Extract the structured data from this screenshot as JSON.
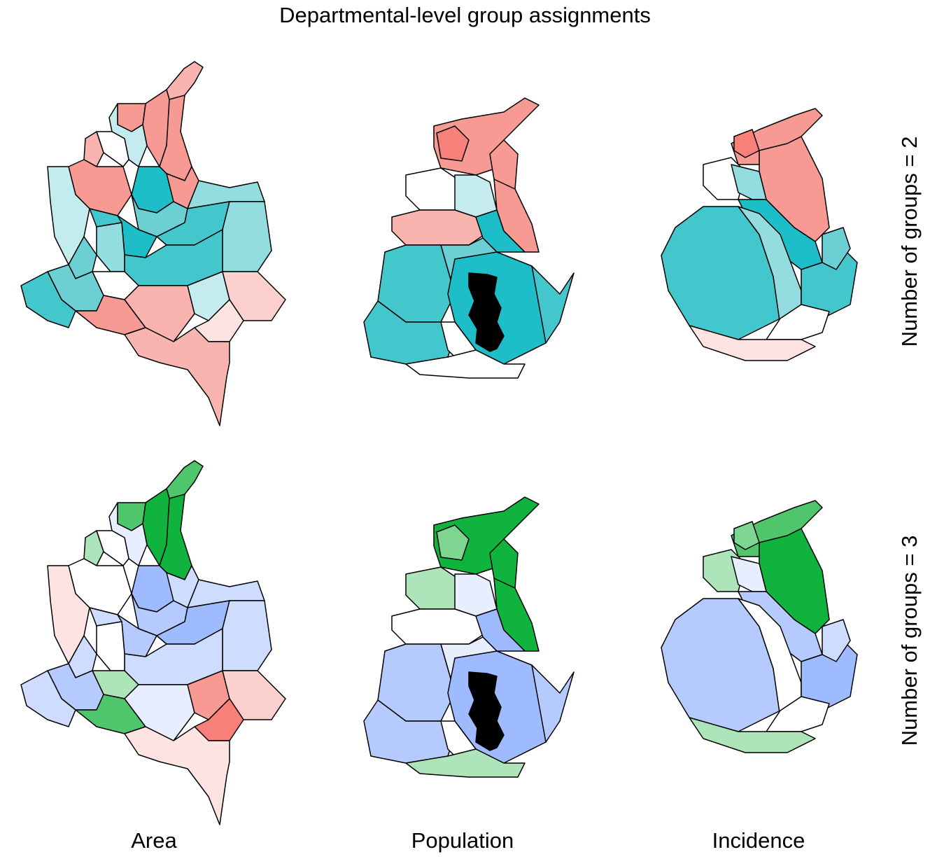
{
  "title": "Departmental-level group assignments",
  "columns": [
    "Area",
    "Population",
    "Incidence"
  ],
  "rows": [
    "Number of groups = 2",
    "Number of groups = 3"
  ],
  "colors": {
    "red_1": "#f7807a",
    "red_2": "#f79a94",
    "red_3": "#f9b4b0",
    "red_4": "#fbd0ce",
    "red_5": "#fde4e3",
    "teal_1": "#1ebec8",
    "teal_2": "#44c6cd",
    "teal_3": "#6ccfd4",
    "teal_4": "#93dde0",
    "teal_5": "#c4ecee",
    "green_1": "#0fb33e",
    "green_2": "#4fc66c",
    "green_3": "#7fd592",
    "green_4": "#ade4b9",
    "blue_1": "#9ebbff",
    "blue_2": "#b5cbff",
    "blue_3": "#cddcff",
    "blue_4": "#e6eeff",
    "pink_1": "#fde4e3",
    "white": "#ffffff",
    "black": "#000000"
  }
}
